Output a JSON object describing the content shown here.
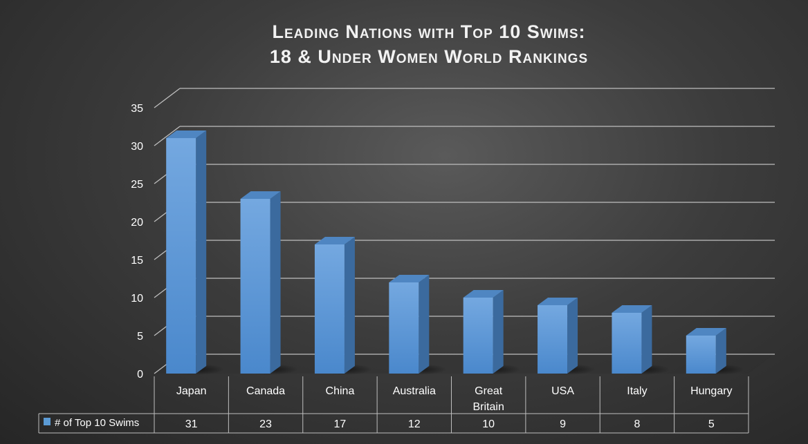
{
  "chart_data": {
    "type": "bar",
    "title_line1": "Leading Nations with Top 10 Swims:",
    "title_line2": "18 & Under Women World Rankings",
    "categories": [
      [
        "Japan"
      ],
      [
        "Canada"
      ],
      [
        "China"
      ],
      [
        "Australia"
      ],
      [
        "Great",
        "Britain"
      ],
      [
        "USA"
      ],
      [
        "Italy"
      ],
      [
        "Hungary"
      ]
    ],
    "series": [
      {
        "name": "# of Top 10 Swims",
        "values": [
          31,
          23,
          17,
          12,
          10,
          9,
          8,
          5
        ],
        "color": "#5b9bd5"
      }
    ],
    "yticks": [
      "0",
      "5",
      "10",
      "15",
      "20",
      "25",
      "30",
      "35"
    ],
    "ylim": [
      0,
      35
    ],
    "grid": true,
    "data_table": true,
    "bar_style": "3d-column"
  }
}
